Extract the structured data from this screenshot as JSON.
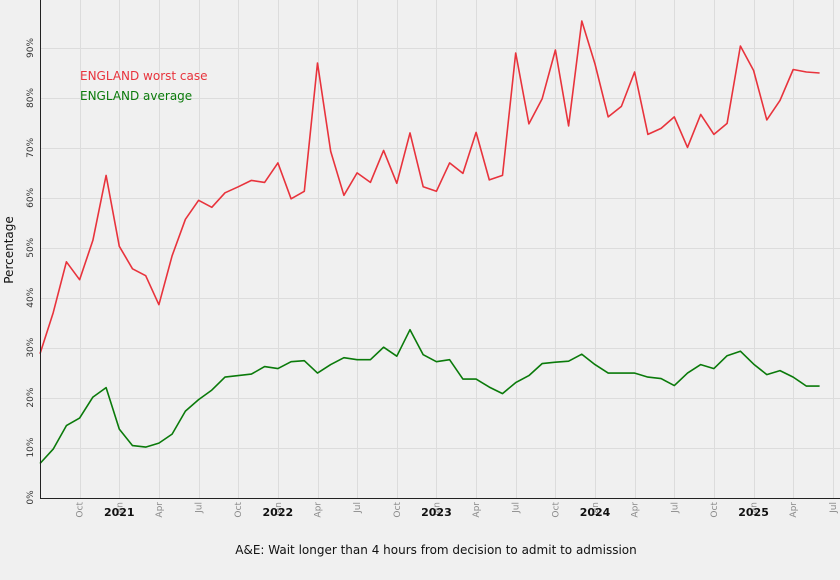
{
  "chart_data": {
    "type": "line",
    "title": "",
    "xlabel": "A&E: Wait longer than 4 hours from decision to admit to admission",
    "ylabel": "Percentage",
    "ylim": [
      0,
      100
    ],
    "yticks": [
      "0%",
      "10%",
      "20%",
      "30%",
      "40%",
      "50%",
      "60%",
      "70%",
      "80%",
      "90%"
    ],
    "grid": true,
    "legend_position": "top-left",
    "x_range": [
      "2020-07",
      "2025-07"
    ],
    "month_ticks": [
      {
        "date": "2020-10",
        "label": "Oct"
      },
      {
        "date": "2021-01",
        "label": "Jan"
      },
      {
        "date": "2021-04",
        "label": "Apr"
      },
      {
        "date": "2021-07",
        "label": "Jul"
      },
      {
        "date": "2021-10",
        "label": "Oct"
      },
      {
        "date": "2022-01",
        "label": "Jan"
      },
      {
        "date": "2022-04",
        "label": "Apr"
      },
      {
        "date": "2022-07",
        "label": "Jul"
      },
      {
        "date": "2022-10",
        "label": "Oct"
      },
      {
        "date": "2023-01",
        "label": "Jan"
      },
      {
        "date": "2023-04",
        "label": "Apr"
      },
      {
        "date": "2023-07",
        "label": "Jul"
      },
      {
        "date": "2023-10",
        "label": "Oct"
      },
      {
        "date": "2024-01",
        "label": "Jan"
      },
      {
        "date": "2024-04",
        "label": "Apr"
      },
      {
        "date": "2024-07",
        "label": "Jul"
      },
      {
        "date": "2024-10",
        "label": "Oct"
      },
      {
        "date": "2025-01",
        "label": "Jan"
      },
      {
        "date": "2025-04",
        "label": "Apr"
      },
      {
        "date": "2025-07",
        "label": "Jul"
      }
    ],
    "year_labels": [
      {
        "date": "2021-01",
        "label": "2021"
      },
      {
        "date": "2022-01",
        "label": "2022"
      },
      {
        "date": "2023-01",
        "label": "2023"
      },
      {
        "date": "2024-01",
        "label": "2024"
      },
      {
        "date": "2025-01",
        "label": "2025"
      }
    ],
    "x": [
      "2020-07",
      "2020-08",
      "2020-09",
      "2020-10",
      "2020-11",
      "2020-12",
      "2021-01",
      "2021-02",
      "2021-03",
      "2021-04",
      "2021-05",
      "2021-06",
      "2021-07",
      "2021-08",
      "2021-09",
      "2021-10",
      "2021-11",
      "2021-12",
      "2022-01",
      "2022-02",
      "2022-03",
      "2022-04",
      "2022-05",
      "2022-06",
      "2022-07",
      "2022-08",
      "2022-09",
      "2022-10",
      "2022-11",
      "2022-12",
      "2023-01",
      "2023-02",
      "2023-03",
      "2023-04",
      "2023-05",
      "2023-06",
      "2023-07",
      "2023-08",
      "2023-09",
      "2023-10",
      "2023-11",
      "2023-12",
      "2024-01",
      "2024-02",
      "2024-03",
      "2024-04",
      "2024-05",
      "2024-06",
      "2024-07",
      "2024-08",
      "2024-09",
      "2024-10",
      "2024-11",
      "2024-12",
      "2025-01",
      "2025-02",
      "2025-03",
      "2025-04",
      "2025-05",
      "2025-06"
    ],
    "series": [
      {
        "name": "ENGLAND worst case",
        "color": "#e8333c",
        "values": [
          28.8,
          37,
          47.2,
          43.6,
          51.5,
          64.5,
          50.3,
          45.8,
          44.4,
          38.6,
          48.4,
          55.7,
          59.5,
          58.1,
          61,
          62.2,
          63.5,
          63.1,
          67,
          59.8,
          61.3,
          87,
          69.3,
          60.5,
          65,
          63.1,
          69.5,
          62.9,
          73,
          62.2,
          61.3,
          67,
          64.9,
          73.1,
          63.6,
          64.5,
          89,
          74.8,
          79.8,
          89.6,
          74.4,
          95.4,
          86.8,
          76.2,
          78.3,
          85.2,
          72.7,
          73.9,
          76.2,
          70.1,
          76.7,
          72.7,
          74.9,
          90.4,
          85.5,
          75.6,
          79.5,
          85.7,
          85.2,
          85
        ]
      },
      {
        "name": "ENGLAND average",
        "color": "#0a7a0a",
        "values": [
          6.8,
          9.7,
          14.4,
          15.9,
          20.1,
          22,
          13.7,
          10.4,
          10.1,
          10.9,
          12.7,
          17.3,
          19.6,
          21.5,
          24.1,
          24.4,
          24.7,
          26.2,
          25.8,
          27.2,
          27.4,
          24.9,
          26.6,
          28,
          27.6,
          27.6,
          30.1,
          28.3,
          33.6,
          28.6,
          27.2,
          27.6,
          23.7,
          23.7,
          22.1,
          20.8,
          23,
          24.4,
          26.8,
          27.1,
          27.3,
          28.7,
          26.6,
          24.9,
          24.9,
          24.9,
          24.1,
          23.8,
          22.4,
          24.9,
          26.6,
          25.8,
          28.4,
          29.3,
          26.7,
          24.6,
          25.4,
          24.1,
          22.3,
          22.3
        ]
      }
    ]
  }
}
